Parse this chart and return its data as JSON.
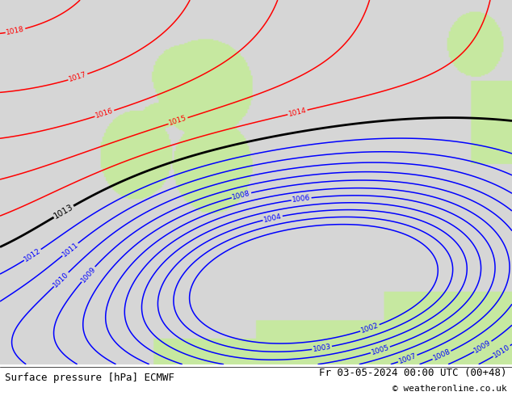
{
  "title_left": "Surface pressure [hPa] ECMWF",
  "title_right": "Fr 03-05-2024 00:00 UTC (00+48)",
  "copyright": "© weatheronline.co.uk",
  "sea_color": [
    0.84,
    0.84,
    0.84
  ],
  "land_color": [
    0.78,
    0.91,
    0.63
  ],
  "footer_bg": "#f0f0f0",
  "blue_levels": [
    1002,
    1003,
    1004,
    1005,
    1006,
    1007,
    1008,
    1009,
    1010,
    1011,
    1012
  ],
  "black_levels": [
    1013
  ],
  "red_levels": [
    1014,
    1015,
    1016,
    1017,
    1018
  ],
  "figsize": [
    6.34,
    4.9
  ],
  "dpi": 100
}
